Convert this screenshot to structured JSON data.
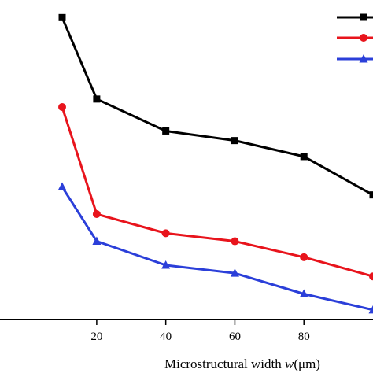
{
  "chart_data": {
    "type": "line",
    "xlabel_prefix": "Microstructural width ",
    "xlabel_var": "w",
    "xlabel_unit": "(μm)",
    "x_tick_labels": [
      "20",
      "40",
      "60",
      "80"
    ],
    "x_ticks": [
      20,
      40,
      60,
      80
    ],
    "xlim": [
      -8,
      100
    ],
    "ylim": [
      0,
      1
    ],
    "grid": false,
    "legend_placement": "top-right",
    "x": [
      10,
      20,
      40,
      60,
      80,
      100
    ],
    "series": [
      {
        "color": "#000000",
        "marker": "square",
        "values": [
          0.945,
          0.69,
          0.59,
          0.56,
          0.51,
          0.39
        ]
      },
      {
        "color": "#e8141c",
        "marker": "circle",
        "values": [
          0.665,
          0.33,
          0.27,
          0.245,
          0.195,
          0.135
        ]
      },
      {
        "color": "#2b3fd9",
        "marker": "triangle",
        "values": [
          0.415,
          0.245,
          0.17,
          0.145,
          0.08,
          0.03
        ]
      }
    ]
  }
}
